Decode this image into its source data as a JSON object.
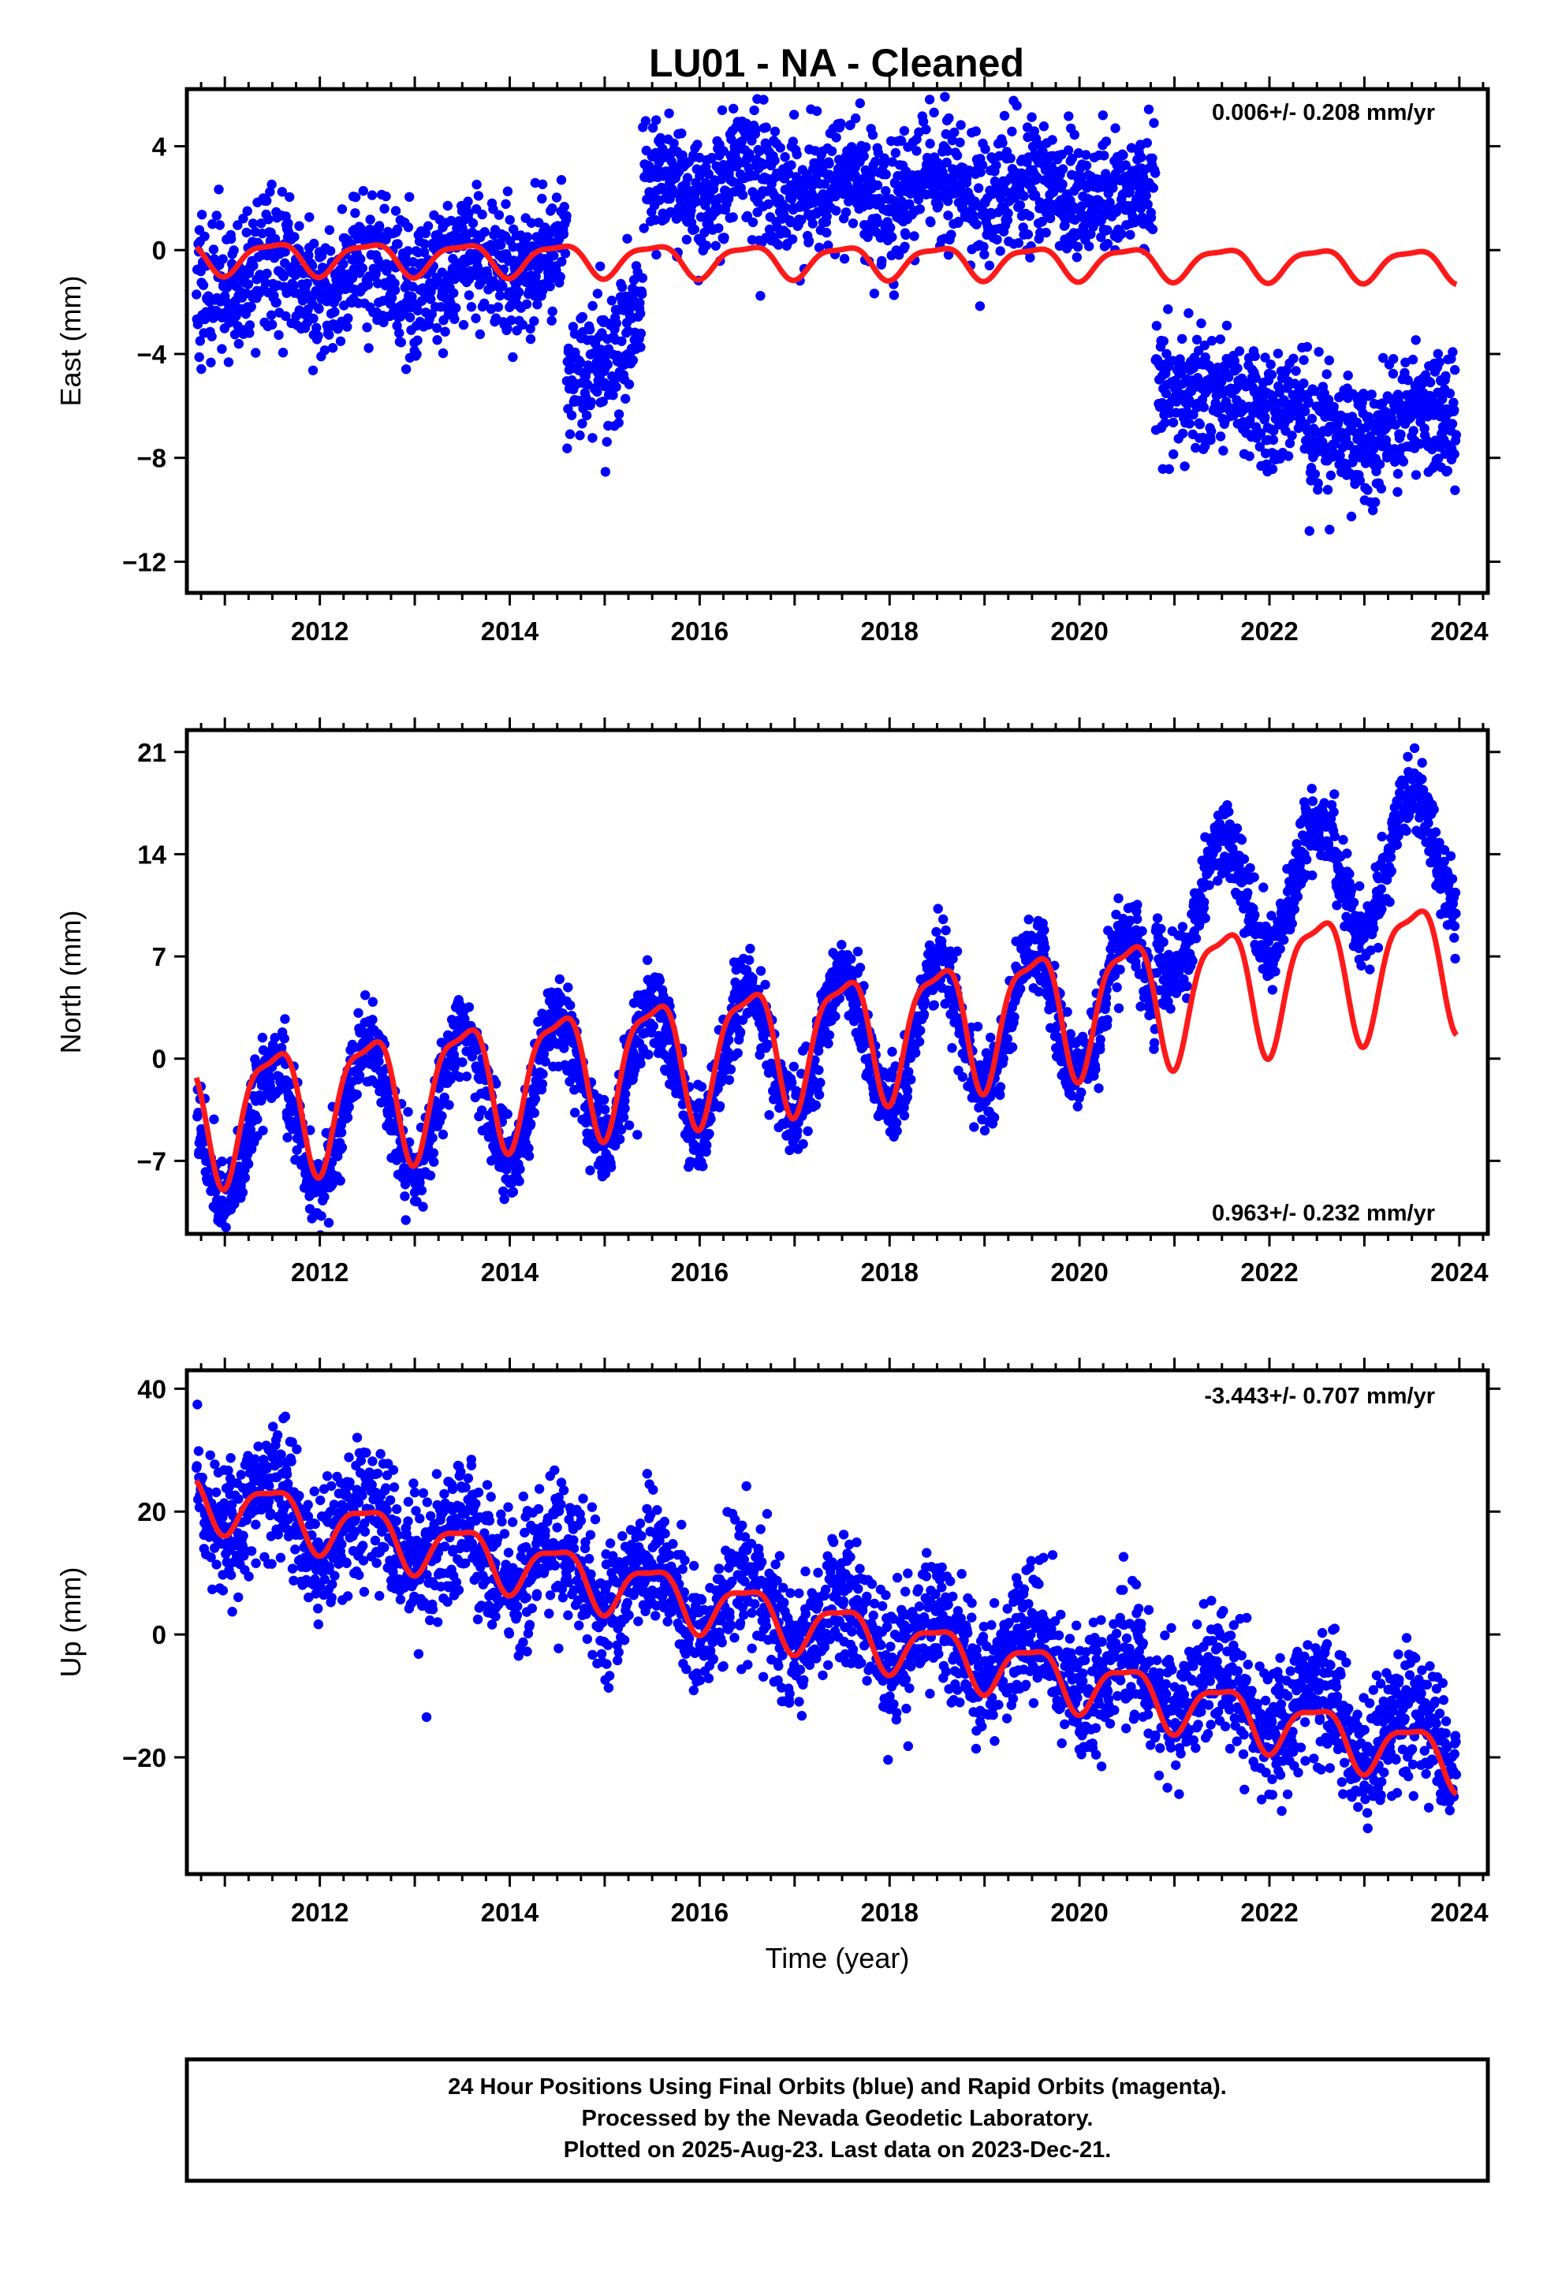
{
  "chart_data": [
    {
      "type": "scatter",
      "title": "LU01  - NA - Cleaned",
      "ylabel": "East (mm)",
      "xlabel": "",
      "rate_label": "0.006+/- 0.208 mm/yr",
      "xlim": [
        2010.6,
        2024.3
      ],
      "ylim": [
        -13.2,
        6.2
      ],
      "xticks": [
        2012,
        2014,
        2016,
        2018,
        2020,
        2022,
        2024
      ],
      "xtick_labels": [
        "2012",
        "2014",
        "2016",
        "2018",
        "2020",
        "2022",
        "2024"
      ],
      "yticks": [
        4,
        0,
        -4,
        -8,
        -12
      ],
      "ytick_labels": [
        "4",
        "0",
        "−4",
        "−8",
        "−12"
      ],
      "series": [
        {
          "role": "observations",
          "color": "#0000ff",
          "segments": [
            {
              "x0": 2010.7,
              "x1": 2014.6,
              "start": -1.2,
              "end": -0.6,
              "amp": 0.6,
              "scatter": 1.3
            },
            {
              "x0": 2014.6,
              "x1": 2015.4,
              "start": -5.5,
              "end": -2.5,
              "amp": 0.4,
              "scatter": 1.4
            },
            {
              "x0": 2015.4,
              "x1": 2020.8,
              "start": 2.5,
              "end": 2.2,
              "amp": 0.5,
              "scatter": 1.2
            },
            {
              "x0": 2020.8,
              "x1": 2022.4,
              "start": -5.0,
              "end": -6.3,
              "amp": 0.4,
              "scatter": 1.1
            },
            {
              "x0": 2022.4,
              "x1": 2023.97,
              "start": -7.5,
              "end": -6.3,
              "amp": 0.4,
              "scatter": 1.2
            }
          ]
        },
        {
          "role": "model",
          "color": "#ff1a1a",
          "x0": 2010.7,
          "x1": 2023.97,
          "start": -0.25,
          "end": -0.55,
          "amp": 0.6
        }
      ]
    },
    {
      "type": "scatter",
      "title": "",
      "ylabel": "North (mm)",
      "xlabel": "",
      "rate_label": "0.963+/- 0.232 mm/yr",
      "xlim": [
        2010.6,
        2024.3
      ],
      "ylim": [
        -12,
        22.5
      ],
      "xticks": [
        2012,
        2014,
        2016,
        2018,
        2020,
        2022,
        2024
      ],
      "xtick_labels": [
        "2012",
        "2014",
        "2016",
        "2018",
        "2020",
        "2022",
        "2024"
      ],
      "yticks": [
        21,
        14,
        7,
        0,
        -7
      ],
      "ytick_labels": [
        "21",
        "14",
        "7",
        "0",
        "−7"
      ],
      "series": [
        {
          "role": "observations",
          "color": "#0000ff",
          "segments": [
            {
              "x0": 2010.7,
              "x1": 2020.8,
              "start": -5.5,
              "end": 4.2,
              "amp": 4.6,
              "scatter": 1.4
            },
            {
              "x0": 2020.8,
              "x1": 2023.97,
              "start": 9.5,
              "end": 14.5,
              "amp": 4.2,
              "scatter": 1.3
            }
          ]
        },
        {
          "role": "model",
          "color": "#ff1a1a",
          "x0": 2010.7,
          "x1": 2023.97,
          "start": -3.8,
          "end": 7.0,
          "amp": 4.2
        }
      ]
    },
    {
      "type": "scatter",
      "title": "",
      "ylabel": "Up (mm)",
      "xlabel": "Time (year)",
      "rate_label": "-3.443+/- 0.707 mm/yr",
      "xlim": [
        2010.6,
        2024.3
      ],
      "ylim": [
        -39,
        43
      ],
      "xticks": [
        2012,
        2014,
        2016,
        2018,
        2020,
        2022,
        2024
      ],
      "xtick_labels": [
        "2012",
        "2014",
        "2016",
        "2018",
        "2020",
        "2022",
        "2024"
      ],
      "yticks": [
        40,
        20,
        0,
        -20
      ],
      "ytick_labels": [
        "40",
        "20",
        "0",
        "−20"
      ],
      "series": [
        {
          "role": "observations",
          "color": "#0000ff",
          "segments": [
            {
              "x0": 2010.7,
              "x1": 2023.97,
              "start": 22,
              "end": -18,
              "amp": 4.5,
              "scatter": 5.2
            }
          ]
        },
        {
          "role": "model",
          "color": "#ff1a1a",
          "x0": 2010.7,
          "x1": 2023.97,
          "start": 22.5,
          "end": -20.5,
          "amp": 4.3
        }
      ]
    }
  ],
  "footer": {
    "line1": "24 Hour Positions Using Final Orbits (blue) and Rapid Orbits (magenta).",
    "line2": "Processed by the Nevada Geodetic Laboratory.",
    "line3": "Plotted on 2025-Aug-23. Last data on 2023-Dec-21."
  }
}
